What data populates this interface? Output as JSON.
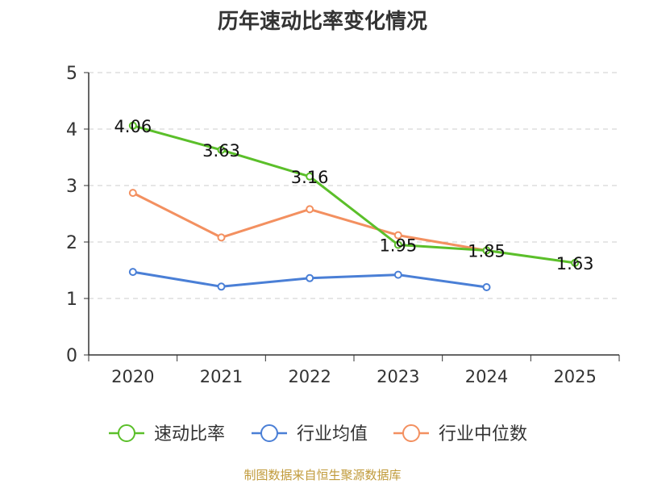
{
  "chart_data": {
    "type": "line",
    "title": "历年速动比率变化情况",
    "categories": [
      "2020",
      "2021",
      "2022",
      "2023",
      "2024",
      "2025"
    ],
    "ylim": [
      0,
      5
    ],
    "yticks": [
      0,
      1,
      2,
      3,
      4,
      5
    ],
    "grid": true,
    "legend_position": "bottom",
    "series": [
      {
        "name": "速动比率",
        "color": "#5bbf2a",
        "values": [
          4.06,
          3.63,
          3.16,
          1.95,
          1.85,
          1.63
        ],
        "show_labels": true
      },
      {
        "name": "行业均值",
        "color": "#4a7fd6",
        "values": [
          1.47,
          1.21,
          1.36,
          1.42,
          1.2,
          null
        ],
        "show_labels": false
      },
      {
        "name": "行业中位数",
        "color": "#f39060",
        "values": [
          2.87,
          2.08,
          2.58,
          2.12,
          1.85,
          null
        ],
        "show_labels": false
      }
    ]
  },
  "footer": {
    "source": "制图数据来自恒生聚源数据库"
  }
}
